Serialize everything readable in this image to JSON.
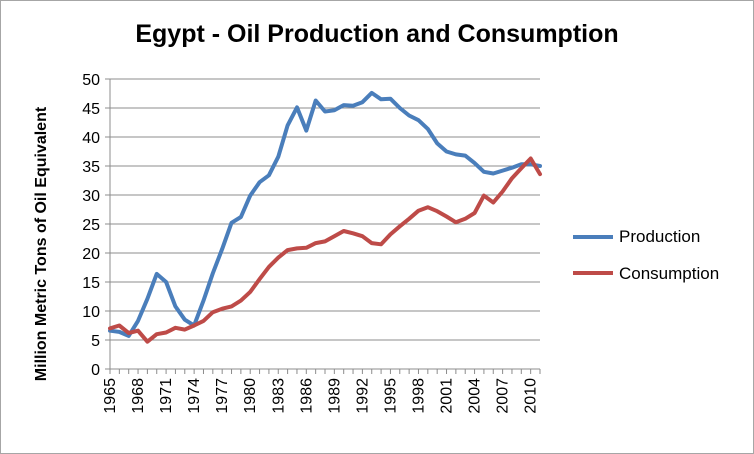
{
  "chart_data": {
    "type": "line",
    "title": "Egypt - Oil Production and Consumption",
    "xlabel": "",
    "ylabel": "Million Metric Tons of Oil Equivalent",
    "ylim": [
      0,
      50
    ],
    "yticks": [
      0,
      5,
      10,
      15,
      20,
      25,
      30,
      35,
      40,
      45,
      50
    ],
    "xlim": [
      1965,
      2011
    ],
    "xticks": [
      1965,
      1968,
      1971,
      1974,
      1977,
      1980,
      1983,
      1986,
      1989,
      1992,
      1995,
      1998,
      2001,
      2004,
      2007,
      2010
    ],
    "grid": "horizontal",
    "legend_position": "right",
    "x": [
      1965,
      1966,
      1967,
      1968,
      1969,
      1970,
      1971,
      1972,
      1973,
      1974,
      1975,
      1976,
      1977,
      1978,
      1979,
      1980,
      1981,
      1982,
      1983,
      1984,
      1985,
      1986,
      1987,
      1988,
      1989,
      1990,
      1991,
      1992,
      1993,
      1994,
      1995,
      1996,
      1997,
      1998,
      1999,
      2000,
      2001,
      2002,
      2003,
      2004,
      2005,
      2006,
      2007,
      2008,
      2009,
      2010,
      2011
    ],
    "series": [
      {
        "name": "Production",
        "color": "#4a7ebb",
        "values": [
          6.6,
          6.4,
          5.7,
          8.3,
          12.1,
          16.4,
          15.0,
          10.8,
          8.5,
          7.5,
          11.8,
          16.5,
          20.7,
          25.2,
          26.2,
          29.9,
          32.2,
          33.4,
          36.6,
          42.0,
          45.1,
          41.1,
          46.3,
          44.4,
          44.6,
          45.5,
          45.4,
          46.0,
          47.6,
          46.5,
          46.6,
          45.0,
          43.7,
          42.9,
          41.4,
          38.9,
          37.5,
          37.0,
          36.8,
          35.5,
          34.0,
          33.7,
          34.2,
          34.7,
          35.3,
          35.3,
          35.0
        ]
      },
      {
        "name": "Consumption",
        "color": "#be4b48",
        "values": [
          7.0,
          7.5,
          6.2,
          6.6,
          4.7,
          6.0,
          6.3,
          7.1,
          6.8,
          7.5,
          8.3,
          9.8,
          10.4,
          10.8,
          11.8,
          13.3,
          15.5,
          17.6,
          19.2,
          20.5,
          20.8,
          20.9,
          21.7,
          22.0,
          22.9,
          23.8,
          23.4,
          22.9,
          21.7,
          21.5,
          23.2,
          24.6,
          25.9,
          27.3,
          27.9,
          27.2,
          26.3,
          25.3,
          25.9,
          26.9,
          29.9,
          28.7,
          30.6,
          32.9,
          34.6,
          36.3,
          33.6
        ]
      }
    ]
  }
}
